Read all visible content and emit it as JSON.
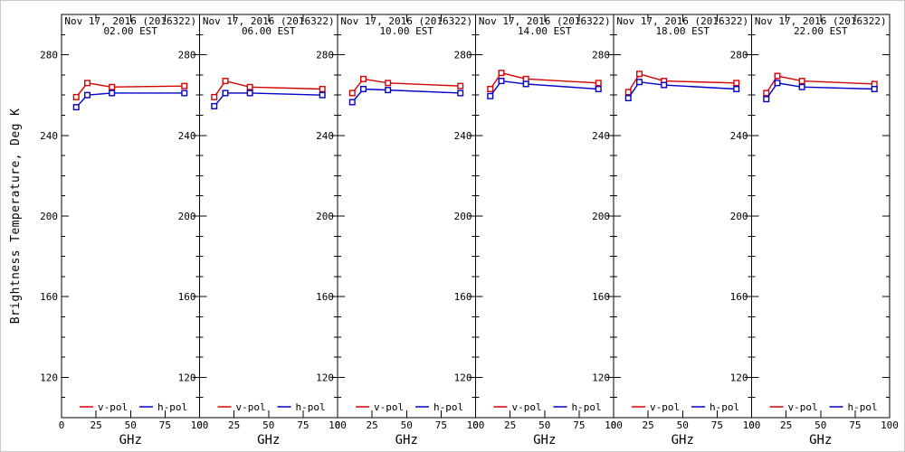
{
  "figure": {
    "ylabel": "Brightness Temperature, Deg K",
    "background": "#ffffff",
    "frame_color": "#000000",
    "text_color": "#000000"
  },
  "legend": {
    "v_label": "v-pol",
    "h_label": "h-pol",
    "position": "bottom-inside-each-panel"
  },
  "colors": {
    "v_pol": "#d40000",
    "h_pol": "#0000c8"
  },
  "chart_data": [
    {
      "type": "line",
      "title_line1": "Nov 17, 2016 (2016322)",
      "title_line2": "02.00 EST",
      "xlabel": "GHz",
      "x": [
        10.65,
        18.7,
        36.5,
        89
      ],
      "xlim": [
        0,
        100
      ],
      "ylim": [
        100,
        300
      ],
      "xticks": [
        0,
        25,
        50,
        75,
        100
      ],
      "yticks": [
        120,
        160,
        200,
        240,
        280
      ],
      "y_minor_step": 10,
      "marker": "open-square",
      "grid": false,
      "series": [
        {
          "name": "v-pol",
          "color": "#d40000",
          "values": [
            259,
            266,
            264,
            264.5
          ]
        },
        {
          "name": "h-pol",
          "color": "#0000c8",
          "values": [
            254,
            260,
            261,
            261
          ]
        }
      ]
    },
    {
      "type": "line",
      "title_line1": "Nov 17, 2016 (2016322)",
      "title_line2": "06.00 EST",
      "xlabel": "GHz",
      "x": [
        10.65,
        18.7,
        36.5,
        89
      ],
      "xlim": [
        0,
        100
      ],
      "ylim": [
        100,
        300
      ],
      "xticks": [
        0,
        25,
        50,
        75,
        100
      ],
      "yticks": [
        120,
        160,
        200,
        240,
        280
      ],
      "y_minor_step": 10,
      "marker": "open-square",
      "grid": false,
      "series": [
        {
          "name": "v-pol",
          "color": "#d40000",
          "values": [
            259,
            267,
            264,
            263
          ]
        },
        {
          "name": "h-pol",
          "color": "#0000c8",
          "values": [
            254.5,
            261,
            261,
            260
          ]
        }
      ]
    },
    {
      "type": "line",
      "title_line1": "Nov 17, 2016 (2016322)",
      "title_line2": "10.00 EST",
      "xlabel": "GHz",
      "x": [
        10.65,
        18.7,
        36.5,
        89
      ],
      "xlim": [
        0,
        100
      ],
      "ylim": [
        100,
        300
      ],
      "xticks": [
        0,
        25,
        50,
        75,
        100
      ],
      "yticks": [
        120,
        160,
        200,
        240,
        280
      ],
      "y_minor_step": 10,
      "marker": "open-square",
      "grid": false,
      "series": [
        {
          "name": "v-pol",
          "color": "#d40000",
          "values": [
            261,
            268,
            266,
            264.5
          ]
        },
        {
          "name": "h-pol",
          "color": "#0000c8",
          "values": [
            256.5,
            263,
            262.5,
            261
          ]
        }
      ]
    },
    {
      "type": "line",
      "title_line1": "Nov 17, 2016 (2016322)",
      "title_line2": "14.00 EST",
      "xlabel": "GHz",
      "x": [
        10.65,
        18.7,
        36.5,
        89
      ],
      "xlim": [
        0,
        100
      ],
      "ylim": [
        100,
        300
      ],
      "xticks": [
        0,
        25,
        50,
        75,
        100
      ],
      "yticks": [
        120,
        160,
        200,
        240,
        280
      ],
      "y_minor_step": 10,
      "marker": "open-square",
      "grid": false,
      "series": [
        {
          "name": "v-pol",
          "color": "#d40000",
          "values": [
            263,
            271,
            268,
            266
          ]
        },
        {
          "name": "h-pol",
          "color": "#0000c8",
          "values": [
            259.5,
            267,
            265.5,
            263
          ]
        }
      ]
    },
    {
      "type": "line",
      "title_line1": "Nov 17, 2016 (2016322)",
      "title_line2": "18.00 EST",
      "xlabel": "GHz",
      "x": [
        10.65,
        18.7,
        36.5,
        89
      ],
      "xlim": [
        0,
        100
      ],
      "ylim": [
        100,
        300
      ],
      "xticks": [
        0,
        25,
        50,
        75,
        100
      ],
      "yticks": [
        120,
        160,
        200,
        240,
        280
      ],
      "y_minor_step": 10,
      "marker": "open-square",
      "grid": false,
      "series": [
        {
          "name": "v-pol",
          "color": "#d40000",
          "values": [
            261.5,
            270.5,
            267,
            266
          ]
        },
        {
          "name": "h-pol",
          "color": "#0000c8",
          "values": [
            258.5,
            266.5,
            265,
            263
          ]
        }
      ]
    },
    {
      "type": "line",
      "title_line1": "Nov 17, 2016 (2016322)",
      "title_line2": "22.00 EST",
      "xlabel": "GHz",
      "x": [
        10.65,
        18.7,
        36.5,
        89
      ],
      "xlim": [
        0,
        100
      ],
      "ylim": [
        100,
        300
      ],
      "xticks": [
        0,
        25,
        50,
        75,
        100
      ],
      "yticks": [
        120,
        160,
        200,
        240,
        280
      ],
      "y_minor_step": 10,
      "marker": "open-square",
      "grid": false,
      "series": [
        {
          "name": "v-pol",
          "color": "#d40000",
          "values": [
            261,
            269.5,
            267,
            265.5
          ]
        },
        {
          "name": "h-pol",
          "color": "#0000c8",
          "values": [
            258,
            266,
            264,
            263
          ]
        }
      ]
    }
  ]
}
